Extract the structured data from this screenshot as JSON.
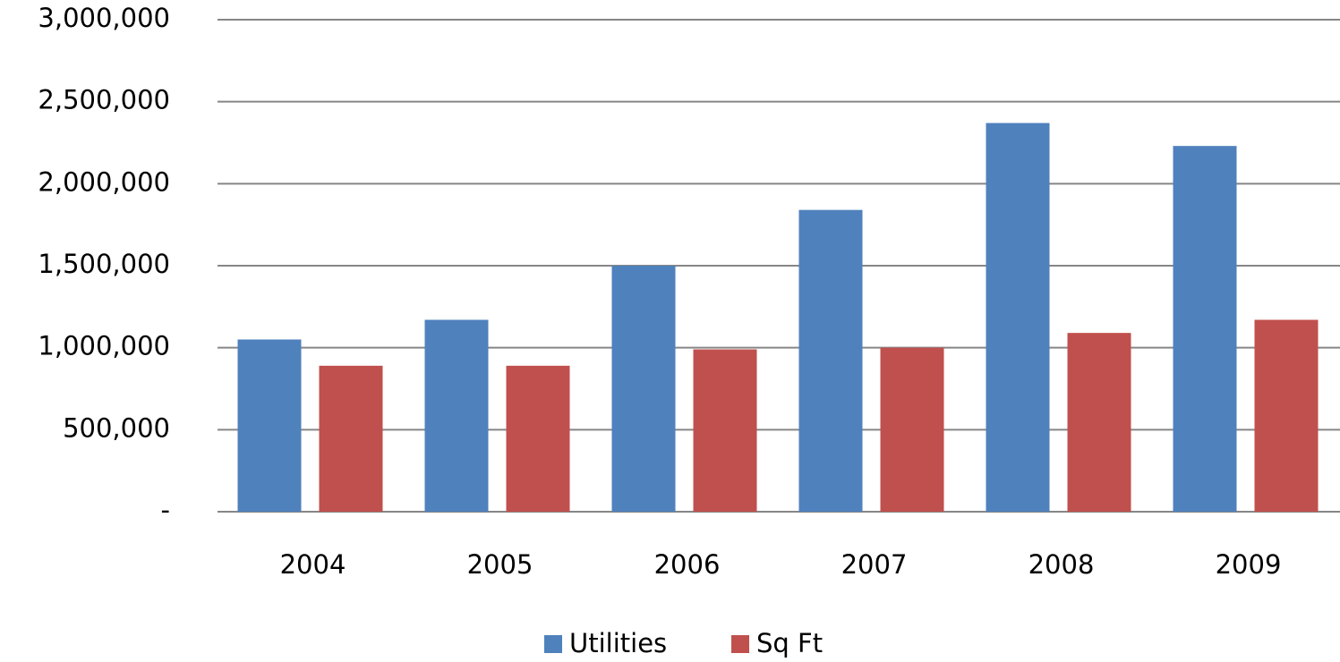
{
  "chart_data": {
    "type": "bar",
    "categories": [
      "2004",
      "2005",
      "2006",
      "2007",
      "2008",
      "2009"
    ],
    "series": [
      {
        "name": "Utilities",
        "color": "#4f81bd",
        "values": [
          1050000,
          1170000,
          1500000,
          1840000,
          2370000,
          2230000
        ]
      },
      {
        "name": "Sq Ft",
        "color": "#c0504d",
        "values": [
          890000,
          890000,
          990000,
          1000000,
          1090000,
          1170000
        ]
      }
    ],
    "ylim": [
      0,
      3000000
    ],
    "yticks": [
      {
        "value": 0,
        "label": "-"
      },
      {
        "value": 500000,
        "label": "500,000"
      },
      {
        "value": 1000000,
        "label": "1,000,000"
      },
      {
        "value": 1500000,
        "label": "1,500,000"
      },
      {
        "value": 2000000,
        "label": "2,000,000"
      },
      {
        "value": 2500000,
        "label": "2,500,000"
      },
      {
        "value": 3000000,
        "label": "3,000,000"
      }
    ],
    "grid": true,
    "legend": "bottom"
  }
}
